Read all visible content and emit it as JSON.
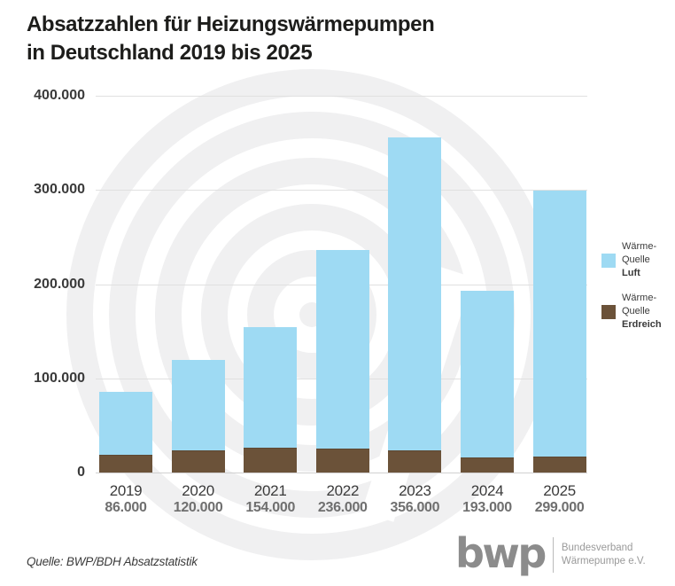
{
  "title": {
    "line1": "Absatzzahlen für Heizungswärmepumpen",
    "line2": "in Deutschland 2019 bis 2025"
  },
  "chart_data": {
    "type": "bar",
    "stacked": true,
    "title": "Absatzzahlen für Heizungswärmepumpen in Deutschland 2019 bis 2025",
    "categories": [
      "2019",
      "2020",
      "2021",
      "2022",
      "2023",
      "2024",
      "2025"
    ],
    "series": [
      {
        "name": "Wärme-Quelle Luft",
        "color": "#9edaf3",
        "values": [
          67000,
          96000,
          128000,
          211000,
          332000,
          177000,
          282000
        ]
      },
      {
        "name": "Wärme-Quelle Erdreich",
        "color": "#6b5239",
        "values": [
          19000,
          24000,
          26000,
          25000,
          24000,
          16000,
          17000
        ]
      }
    ],
    "totals": [
      86000,
      120000,
      154000,
      236000,
      356000,
      193000,
      299000
    ],
    "total_labels": [
      "86.000",
      "120.000",
      "154.000",
      "236.000",
      "356.000",
      "193.000",
      "299.000"
    ],
    "xlabel": "",
    "ylabel": "",
    "ylim": [
      0,
      400000
    ],
    "yticks": [
      {
        "label": "400.000",
        "value": 400000
      },
      {
        "label": "300.000",
        "value": 300000
      },
      {
        "label": "200.000",
        "value": 200000
      },
      {
        "label": "100.000",
        "value": 100000
      },
      {
        "label": "0",
        "value": 0
      }
    ],
    "grid": true,
    "legend_position": "right"
  },
  "legend": {
    "items": [
      {
        "line1": "Wärme-",
        "line2": "Quelle",
        "line3": "Luft",
        "color": "#9edaf3"
      },
      {
        "line1": "Wärme-",
        "line2": "Quelle",
        "line3": "Erdreich",
        "color": "#6b5239"
      }
    ]
  },
  "source": "Quelle: BWP/BDH Absatzstatistik",
  "logo": {
    "mark": "bwp",
    "org_line1": "Bundesverband",
    "org_line2": "Wärmepumpe e.V."
  },
  "colors": {
    "luft": "#9edaf3",
    "erdreich": "#6b5239",
    "watermark": "#f0f0f1",
    "grid": "#e0e0e0",
    "title_text": "#1d1d1b",
    "axis_label": "#3a3a3a",
    "total_label": "#6f6f6f"
  }
}
